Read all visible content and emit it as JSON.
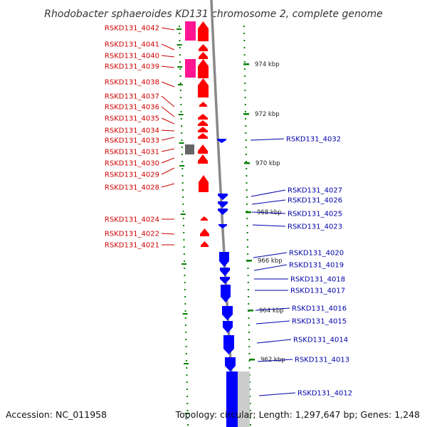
{
  "title": "Rhodobacter sphaeroides KD131 chromosome 2, complete genome",
  "footer": {
    "accession": "Accession: NC_011958",
    "stats": "Topology: circular; Length: 1,297,647 bp; Genes: 1,248"
  },
  "colors": {
    "forward_gene": "#ff0000",
    "reverse_gene": "#0000ff",
    "pseudo_gene": "#ff1493",
    "other_gene": "#666666",
    "backbone": "#888888",
    "tick": "#008000",
    "forward_label": "#cc0000",
    "reverse_label": "#0000aa"
  },
  "scale_ticks": [
    {
      "label": "974 kbp"
    },
    {
      "label": "972 kbp"
    },
    {
      "label": "970 kbp"
    },
    {
      "label": "968 kbp"
    },
    {
      "label": "966 kbp"
    },
    {
      "label": "964 kbp"
    },
    {
      "label": "962 kbp"
    }
  ],
  "forward_labels": [
    "RSKD131_4042",
    "RSKD131_4041",
    "RSKD131_4040",
    "RSKD131_4039",
    "RSKD131_4038",
    "RSKD131_4037",
    "RSKD131_4036",
    "RSKD131_4035",
    "RSKD131_4034",
    "RSKD131_4033",
    "RSKD131_4031",
    "RSKD131_4030",
    "RSKD131_4029",
    "RSKD131_4028",
    "RSKD131_4024",
    "RSKD131_4022",
    "RSKD131_4021"
  ],
  "reverse_labels": [
    "RSKD131_4032",
    "RSKD131_4027",
    "RSKD131_4026",
    "RSKD131_4025",
    "RSKD131_4023",
    "RSKD131_4020",
    "RSKD131_4019",
    "RSKD131_4018",
    "RSKD131_4017",
    "RSKD131_4016",
    "RSKD131_4015",
    "RSKD131_4014",
    "RSKD131_4013",
    "RSKD131_4012"
  ]
}
